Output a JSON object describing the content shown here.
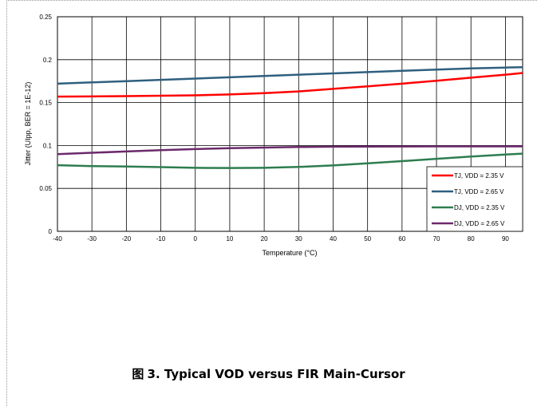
{
  "caption": {
    "prefix": "图",
    "text": "3. Typical VOD versus FIR Main-Cursor"
  },
  "chart_data": {
    "type": "line",
    "title": "",
    "xlabel": "Temperature (°C)",
    "ylabel": "Jitter (UIpp, BER = 1E-12)",
    "xlim": [
      -40,
      95
    ],
    "ylim": [
      0,
      0.25
    ],
    "x_ticks": [
      -40,
      -30,
      -20,
      -10,
      0,
      10,
      20,
      30,
      40,
      50,
      60,
      70,
      80,
      90
    ],
    "y_ticks": [
      0,
      0.05,
      0.1,
      0.15,
      0.2,
      0.25
    ],
    "y_tick_labels": [
      "0",
      "0.05",
      "0.1",
      "0.15",
      "0.2",
      "0.25"
    ],
    "grid": true,
    "legend_position": "bottom-right",
    "x": [
      -40,
      -30,
      -20,
      -10,
      0,
      10,
      20,
      30,
      40,
      50,
      60,
      70,
      80,
      90,
      95
    ],
    "series": [
      {
        "name": "TJ, VDD = 2.35 V",
        "color": "#ff0000",
        "values": [
          0.157,
          0.1572,
          0.1575,
          0.158,
          0.1585,
          0.1595,
          0.161,
          0.163,
          0.166,
          0.169,
          0.172,
          0.1755,
          0.179,
          0.1825,
          0.1845
        ]
      },
      {
        "name": "TJ, VDD = 2.65 V",
        "color": "#2f5f7f",
        "values": [
          0.172,
          0.1735,
          0.175,
          0.1765,
          0.178,
          0.1795,
          0.181,
          0.1825,
          0.184,
          0.1855,
          0.187,
          0.1885,
          0.1898,
          0.1908,
          0.1912
        ]
      },
      {
        "name": "DJ, VDD = 2.35 V",
        "color": "#2e7d4f",
        "values": [
          0.077,
          0.076,
          0.0755,
          0.0748,
          0.074,
          0.0738,
          0.074,
          0.075,
          0.0768,
          0.0792,
          0.0818,
          0.0845,
          0.0872,
          0.0895,
          0.0905
        ]
      },
      {
        "name": "DJ, VDD = 2.65 V",
        "color": "#6b2a6b",
        "values": [
          0.09,
          0.0915,
          0.093,
          0.0945,
          0.0958,
          0.0968,
          0.0976,
          0.0982,
          0.0986,
          0.0988,
          0.0989,
          0.099,
          0.099,
          0.099,
          0.099
        ]
      }
    ]
  }
}
